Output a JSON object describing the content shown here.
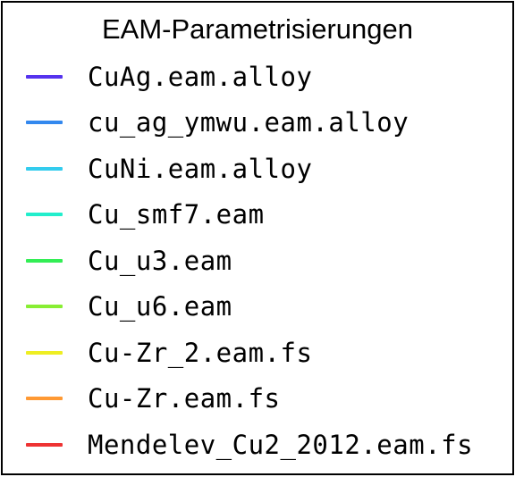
{
  "chart_data": {
    "type": "legend",
    "title": "EAM-Parametrisierungen",
    "legend": [
      {
        "label": "CuAg.eam.alloy",
        "color": "#5533ee"
      },
      {
        "label": "cu_ag_ymwu.eam.alloy",
        "color": "#3388ee"
      },
      {
        "label": "CuNi.eam.alloy",
        "color": "#33ccee"
      },
      {
        "label": "Cu_smf7.eam",
        "color": "#22eecc"
      },
      {
        "label": "Cu_u3.eam",
        "color": "#33ee55"
      },
      {
        "label": "Cu_u6.eam",
        "color": "#88ee33"
      },
      {
        "label": "Cu-Zr_2.eam.fs",
        "color": "#eeee22"
      },
      {
        "label": "Cu-Zr.eam.fs",
        "color": "#ff9933"
      },
      {
        "label": "Mendelev_Cu2_2012.eam.fs",
        "color": "#ee3333"
      }
    ]
  }
}
